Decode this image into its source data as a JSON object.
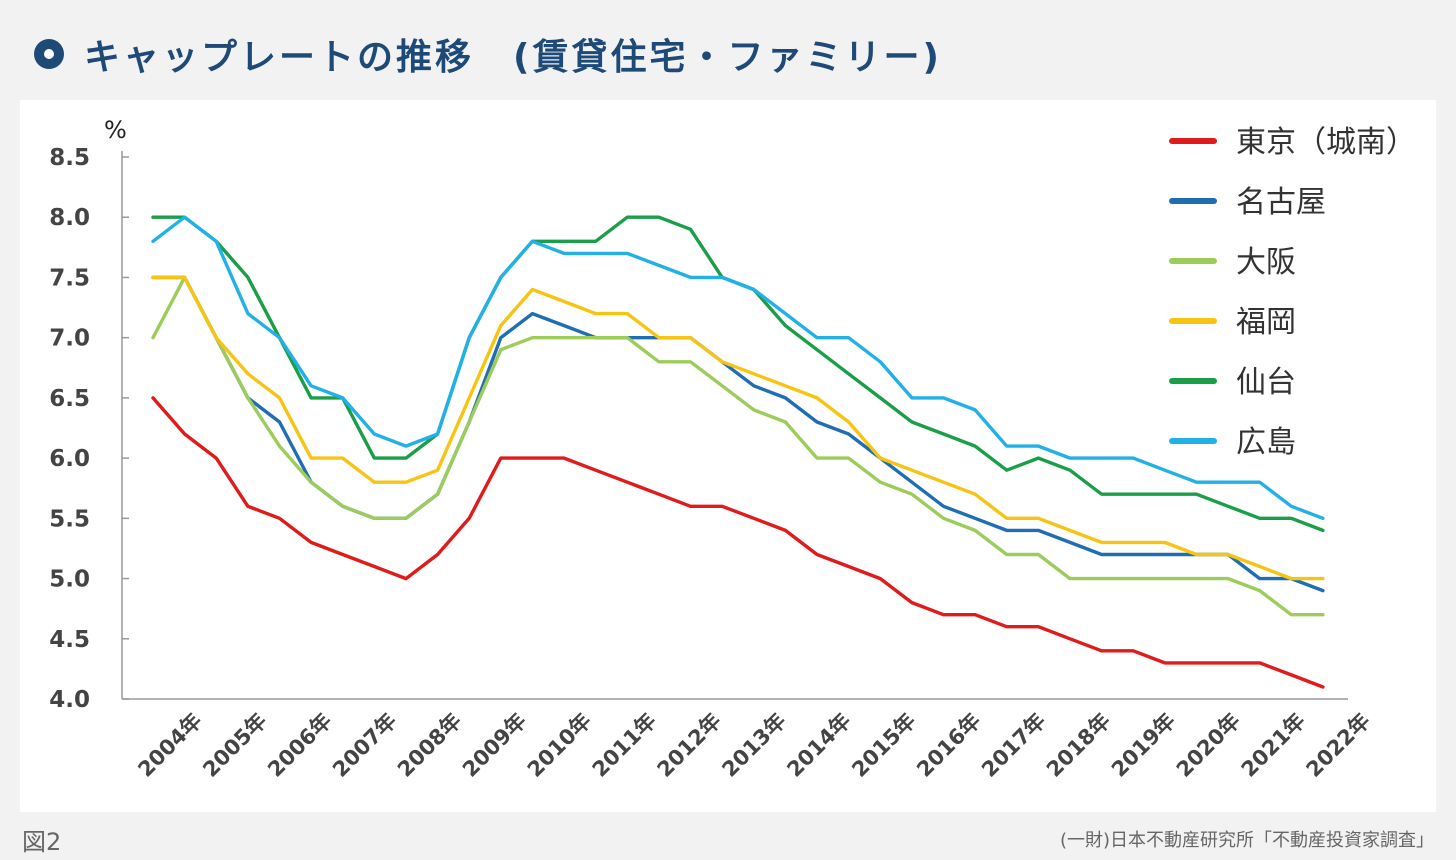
{
  "header": {
    "title": "キャップレートの推移　(賃貸住宅・ファミリー)"
  },
  "footer": {
    "figure_label": "図2",
    "source": "(一財)日本不動産研究所「不動産投資家調査」"
  },
  "chart_data": {
    "type": "line",
    "title": "キャップレートの推移　(賃貸住宅・ファミリー)",
    "ylabel": "%",
    "ylim": [
      4.0,
      8.5
    ],
    "yticks": [
      "4.0",
      "4.5",
      "5.0",
      "5.5",
      "6.0",
      "6.5",
      "7.0",
      "7.5",
      "8.0",
      "8.5"
    ],
    "xtick_labels": [
      "2004年",
      "2005年",
      "2006年",
      "2007年",
      "2008年",
      "2009年",
      "2010年",
      "2011年",
      "2012年",
      "2013年",
      "2014年",
      "2015年",
      "2016年",
      "2017年",
      "2018年",
      "2019年",
      "2020年",
      "2021年",
      "2022年"
    ],
    "x_semiannual": [
      "2004-04",
      "2004-10",
      "2005-04",
      "2005-10",
      "2006-04",
      "2006-10",
      "2007-04",
      "2007-10",
      "2008-04",
      "2008-10",
      "2009-04",
      "2009-10",
      "2010-04",
      "2010-10",
      "2011-04",
      "2011-10",
      "2012-04",
      "2012-10",
      "2013-04",
      "2013-10",
      "2014-04",
      "2014-10",
      "2015-04",
      "2015-10",
      "2016-04",
      "2016-10",
      "2017-04",
      "2017-10",
      "2018-04",
      "2018-10",
      "2019-04",
      "2019-10",
      "2020-04",
      "2020-10",
      "2021-04",
      "2021-10",
      "2022-04",
      "2022-10"
    ],
    "grid": false,
    "legend_position": "top-right",
    "series": [
      {
        "name": "東京（城南）",
        "color": "#e01b1b",
        "values": [
          6.5,
          6.2,
          6.0,
          5.6,
          5.5,
          5.3,
          5.2,
          5.1,
          5.0,
          5.2,
          5.5,
          6.0,
          6.0,
          6.0,
          5.9,
          5.8,
          5.7,
          5.6,
          5.6,
          5.5,
          5.4,
          5.2,
          5.1,
          5.0,
          4.8,
          4.7,
          4.7,
          4.6,
          4.6,
          4.5,
          4.4,
          4.4,
          4.3,
          4.3,
          4.3,
          4.3,
          4.2,
          4.1
        ]
      },
      {
        "name": "名古屋",
        "color": "#1f6eb4",
        "values": [
          7.5,
          7.5,
          7.0,
          6.5,
          6.3,
          5.8,
          5.6,
          5.5,
          5.5,
          5.7,
          6.3,
          7.0,
          7.2,
          7.1,
          7.0,
          7.0,
          7.0,
          7.0,
          6.8,
          6.6,
          6.5,
          6.3,
          6.2,
          6.0,
          5.8,
          5.6,
          5.5,
          5.4,
          5.4,
          5.3,
          5.2,
          5.2,
          5.2,
          5.2,
          5.2,
          5.0,
          5.0,
          4.9
        ]
      },
      {
        "name": "大阪",
        "color": "#9ccc5a",
        "values": [
          7.0,
          7.5,
          7.0,
          6.5,
          6.1,
          5.8,
          5.6,
          5.5,
          5.5,
          5.7,
          6.3,
          6.9,
          7.0,
          7.0,
          7.0,
          7.0,
          6.8,
          6.8,
          6.6,
          6.4,
          6.3,
          6.0,
          6.0,
          5.8,
          5.7,
          5.5,
          5.4,
          5.2,
          5.2,
          5.0,
          5.0,
          5.0,
          5.0,
          5.0,
          5.0,
          4.9,
          4.7,
          4.7
        ]
      },
      {
        "name": "福岡",
        "color": "#f6c413",
        "values": [
          7.5,
          7.5,
          7.0,
          6.7,
          6.5,
          6.0,
          6.0,
          5.8,
          5.8,
          5.9,
          6.5,
          7.1,
          7.4,
          7.3,
          7.2,
          7.2,
          7.0,
          7.0,
          6.8,
          6.7,
          6.6,
          6.5,
          6.3,
          6.0,
          5.9,
          5.8,
          5.7,
          5.5,
          5.5,
          5.4,
          5.3,
          5.3,
          5.3,
          5.2,
          5.2,
          5.1,
          5.0,
          5.0
        ]
      },
      {
        "name": "仙台",
        "color": "#1a9e48",
        "values": [
          8.0,
          8.0,
          7.8,
          7.5,
          7.0,
          6.5,
          6.5,
          6.0,
          6.0,
          6.2,
          7.0,
          7.5,
          7.8,
          7.8,
          7.8,
          8.0,
          8.0,
          7.9,
          7.5,
          7.4,
          7.1,
          6.9,
          6.7,
          6.5,
          6.3,
          6.2,
          6.1,
          5.9,
          6.0,
          5.9,
          5.7,
          5.7,
          5.7,
          5.7,
          5.6,
          5.5,
          5.5,
          5.4
        ]
      },
      {
        "name": "広島",
        "color": "#22b1e6",
        "values": [
          7.8,
          8.0,
          7.8,
          7.2,
          7.0,
          6.6,
          6.5,
          6.2,
          6.1,
          6.2,
          7.0,
          7.5,
          7.8,
          7.7,
          7.7,
          7.7,
          7.6,
          7.5,
          7.5,
          7.4,
          7.2,
          7.0,
          7.0,
          6.8,
          6.5,
          6.5,
          6.4,
          6.1,
          6.1,
          6.0,
          6.0,
          6.0,
          5.9,
          5.8,
          5.8,
          5.8,
          5.6,
          5.5
        ]
      }
    ]
  }
}
